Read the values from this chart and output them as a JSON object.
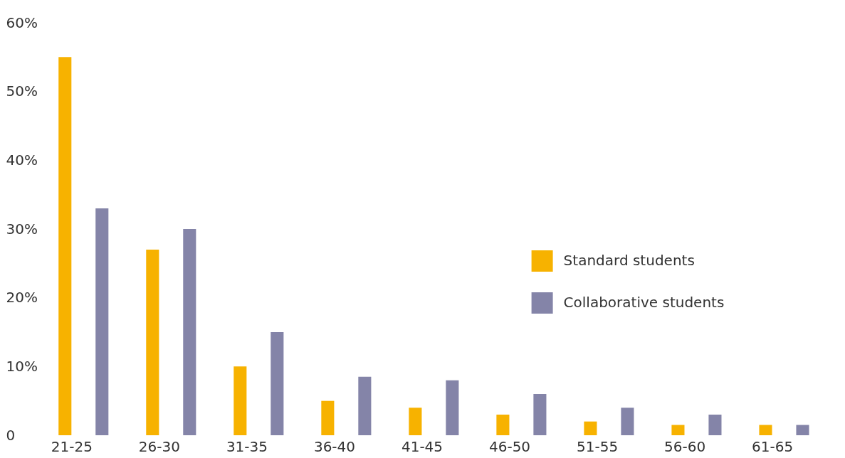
{
  "chart_data": {
    "type": "bar",
    "categories": [
      "21-25",
      "26-30",
      "31-35",
      "36-40",
      "41-45",
      "46-50",
      "51-55",
      "56-60",
      "61-65"
    ],
    "series": [
      {
        "name": "Standard students",
        "color": "#f7b200",
        "values": [
          55,
          27,
          10,
          5,
          4,
          3,
          2,
          1.5,
          1.5
        ]
      },
      {
        "name": "Collaborative students",
        "color": "#8484a8",
        "values": [
          33,
          30,
          15,
          8.5,
          8,
          6,
          4,
          3,
          1.5
        ]
      }
    ],
    "ylim": [
      0,
      60
    ],
    "yticks": [
      0,
      {
        "value": 10,
        "label": "10%"
      },
      {
        "value": 20,
        "label": "20%"
      },
      {
        "value": 30,
        "label": "30%"
      },
      {
        "value": 40,
        "label": "40%"
      },
      {
        "value": 50,
        "label": "50%"
      },
      {
        "value": 60,
        "label": "60%"
      }
    ],
    "grid": false,
    "legend": "right"
  }
}
